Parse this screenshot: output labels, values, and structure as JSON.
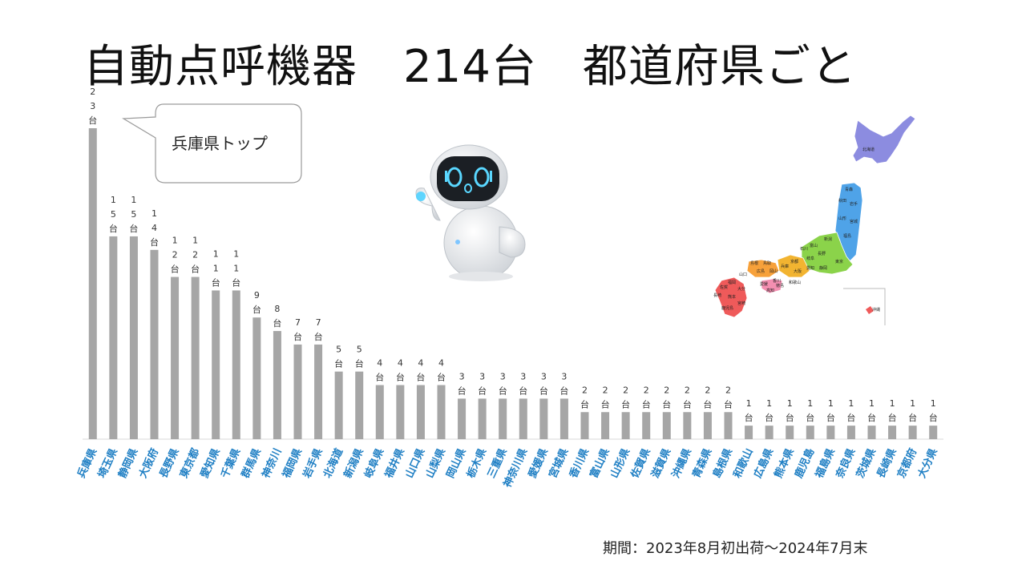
{
  "title": "自動点呼機器　214台　都道府県ごと",
  "callout": "兵庫県トップ",
  "period": "期間：2023年8月初出荷～2024年7月末",
  "unit_suffix": "台",
  "colors": {
    "bar": "#a6a6a6",
    "category_label": "#1f7fc4",
    "axis": "#d9d9d9"
  },
  "map": {
    "hokkaido": "北海道",
    "aomori": "青森",
    "iwate": "岩手",
    "akita": "秋田",
    "miyagi": "宮城",
    "yamagata": "山形",
    "fukushima": "福島",
    "niigata": "新潟",
    "nagano": "長野",
    "ishikawa": "石川",
    "toyama": "富山",
    "tokyo": "東京",
    "aichi": "愛知",
    "shizuoka": "静岡",
    "gifu": "岐阜",
    "kyoto": "京都",
    "osaka": "大阪",
    "hyogo": "兵庫",
    "wakayama": "和歌山",
    "tottori": "鳥取",
    "shimane": "島根",
    "okayama": "岡山",
    "hiroshima": "広島",
    "yamaguchi": "山口",
    "kagawa": "香川",
    "ehime": "愛媛",
    "kochi": "高知",
    "tokushima": "徳島",
    "fukuoka": "福岡",
    "saga": "佐賀",
    "nagasaki": "長崎",
    "kumamoto": "熊本",
    "oita": "大分",
    "miyazaki": "宮崎",
    "kagoshima": "鹿児島",
    "okinawa": "沖縄"
  },
  "chart_data": {
    "type": "bar",
    "title": "自動点呼機器　214台　都道府県ごと",
    "categories": [
      "兵庫県",
      "埼玉県",
      "静岡県",
      "大阪府",
      "長野県",
      "東京都",
      "愛知県",
      "千葉県",
      "群馬県",
      "神奈川",
      "福岡県",
      "岩手県",
      "北海道",
      "新潟県",
      "岐阜県",
      "福井県",
      "山口県",
      "山梨県",
      "岡山県",
      "栃木県",
      "三重県",
      "神奈川県",
      "愛媛県",
      "宮城県",
      "香川県",
      "富山県",
      "山形県",
      "佐賀県",
      "滋賀県",
      "沖縄県",
      "青森県",
      "島根県",
      "和歌山",
      "広島県",
      "熊本県",
      "鹿児島",
      "福島県",
      "奈良県",
      "茨城県",
      "長崎県",
      "京都府",
      "大分県"
    ],
    "values": [
      23,
      15,
      15,
      14,
      12,
      12,
      11,
      11,
      9,
      8,
      7,
      7,
      5,
      5,
      4,
      4,
      4,
      4,
      3,
      3,
      3,
      3,
      3,
      3,
      2,
      2,
      2,
      2,
      2,
      2,
      2,
      2,
      1,
      1,
      1,
      1,
      1,
      1,
      1,
      1,
      1,
      1
    ],
    "value_unit": "台",
    "ylim": [
      0,
      23
    ],
    "grid": false,
    "legend": "none"
  }
}
